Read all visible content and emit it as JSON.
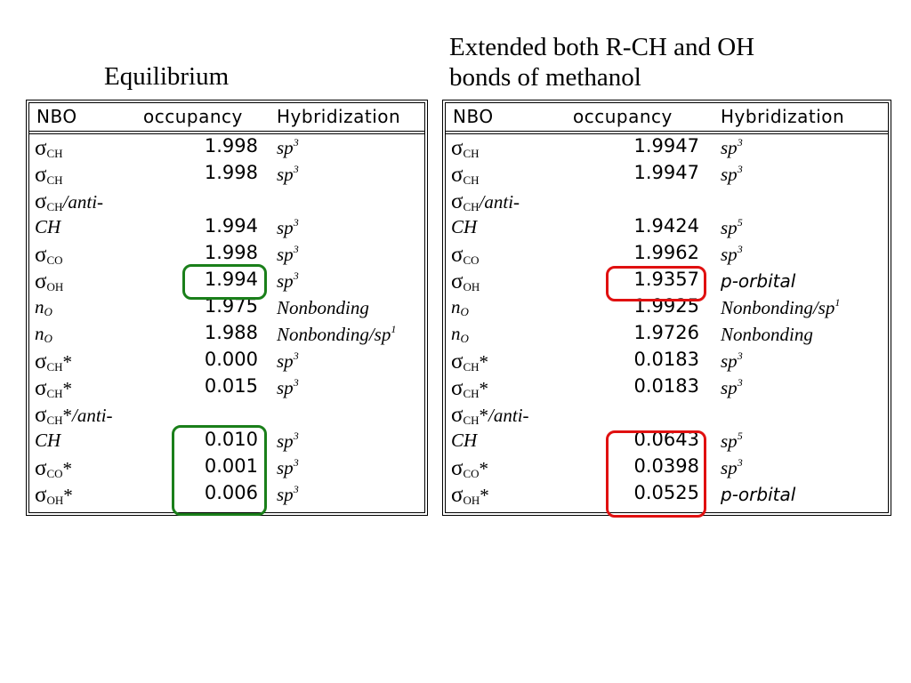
{
  "titles": {
    "left": "Equilibrium",
    "right_line1": "Extended both R-CH and OH",
    "right_line2": "bonds of methanol"
  },
  "columns": [
    "NBO",
    "occupancy",
    "Hybridization"
  ],
  "left_table": {
    "rows": [
      {
        "nbo": "CH",
        "occ": "1.998",
        "hyb": "sp",
        "exp": "3"
      },
      {
        "nbo": "CH",
        "occ": "1.998",
        "hyb": "sp",
        "exp": "3"
      },
      {
        "nbo": "CH",
        "suffix": "/anti-",
        "occ": "",
        "hyb": "",
        "exp": ""
      },
      {
        "nbo_text": "CH",
        "occ": "1.994",
        "hyb": "sp",
        "exp": "3"
      },
      {
        "nbo": "CO",
        "occ": "1.998",
        "hyb": "sp",
        "exp": "3"
      },
      {
        "nbo": "OH",
        "occ": "1.994",
        "hyb": "sp",
        "exp": "3"
      },
      {
        "lone": "O",
        "occ": "1.975",
        "hyb": "Nonbonding",
        "exp": ""
      },
      {
        "lone": "O",
        "occ": "1.988",
        "hyb": "Nonbonding/sp",
        "exp": "1"
      },
      {
        "nbo": "CH",
        "star": "*",
        "occ": "0.000",
        "hyb": "sp",
        "exp": "3"
      },
      {
        "nbo": "CH",
        "star": "*",
        "occ": "0.015",
        "hyb": "sp",
        "exp": "3"
      },
      {
        "nbo": "CH",
        "star": "*",
        "suffix": "/anti-",
        "occ": "",
        "hyb": "",
        "exp": ""
      },
      {
        "nbo_text": "CH",
        "occ": "0.010",
        "hyb": "sp",
        "exp": "3"
      },
      {
        "nbo": "CO",
        "star": "*",
        "occ": "0.001",
        "hyb": "sp",
        "exp": "3"
      },
      {
        "nbo": "OH",
        "star": "*",
        "occ": "0.006",
        "hyb": "sp",
        "exp": "3"
      }
    ]
  },
  "right_table": {
    "rows": [
      {
        "nbo": "CH",
        "occ": "1.9947",
        "hyb": "sp",
        "exp": "3"
      },
      {
        "nbo": "CH",
        "occ": "1.9947",
        "hyb": "sp",
        "exp": "3"
      },
      {
        "nbo": "CH",
        "suffix": "/anti-",
        "occ": "",
        "hyb": "",
        "exp": ""
      },
      {
        "nbo_text": "CH",
        "occ": "1.9424",
        "hyb": "sp",
        "exp": "5"
      },
      {
        "nbo": "CO",
        "occ": "1.9962",
        "hyb": "sp",
        "exp": "3"
      },
      {
        "nbo": "OH",
        "occ": "1.9357",
        "hyb": "p-orbital",
        "exp": "",
        "sans": true
      },
      {
        "lone": "O",
        "occ": "1.9925",
        "hyb": "Nonbonding/sp",
        "exp": "1"
      },
      {
        "lone": "O",
        "occ": "1.9726",
        "hyb": "Nonbonding",
        "exp": ""
      },
      {
        "nbo": "CH",
        "star": "*",
        "occ": "0.0183",
        "hyb": "sp",
        "exp": "3"
      },
      {
        "nbo": "CH",
        "star": "*",
        "occ": "0.0183",
        "hyb": "sp",
        "exp": "3"
      },
      {
        "nbo": "CH",
        "star": "*",
        "suffix": "/anti-",
        "occ": "",
        "hyb": "",
        "exp": ""
      },
      {
        "nbo_text": "CH",
        "occ": "0.0643",
        "hyb": "sp",
        "exp": "5"
      },
      {
        "nbo": "CO",
        "star": "*",
        "occ": "0.0398",
        "hyb": "sp",
        "exp": "3"
      },
      {
        "nbo": "OH",
        "star": "*",
        "occ": "0.0525",
        "hyb": "p-orbital",
        "exp": "",
        "sans": true
      }
    ]
  },
  "colors": {
    "left_highlight": "#1a7f1a",
    "right_highlight": "#e01010"
  },
  "symbols": {
    "sigma": "σ",
    "lone_pair": "n"
  }
}
